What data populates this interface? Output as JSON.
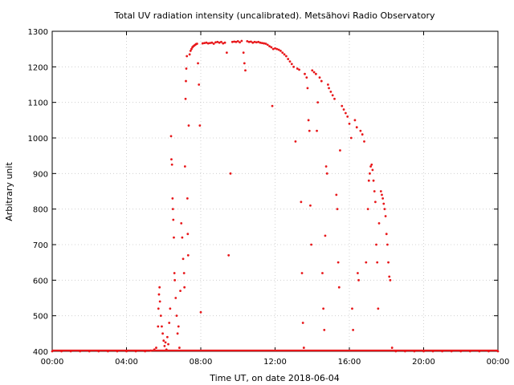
{
  "chart_data": {
    "type": "scatter",
    "title": "Total UV radiation intensity (uncalibrated). Metsähovi Radio Observatory",
    "xlabel": "Time UT, on date 2018-06-04",
    "ylabel": "Arbitrary unit",
    "x_unit": "hours UT",
    "xlim": [
      0,
      24
    ],
    "ylim": [
      400,
      1300
    ],
    "x_ticks": [
      0,
      4,
      8,
      12,
      16,
      20,
      24
    ],
    "x_tick_labels": [
      "00:00",
      "04:00",
      "08:00",
      "12:00",
      "16:00",
      "20:00",
      "00:00"
    ],
    "y_ticks": [
      400,
      500,
      600,
      700,
      800,
      900,
      1000,
      1100,
      1200,
      1300
    ],
    "y_tick_labels": [
      "400",
      "500",
      "600",
      "700",
      "800",
      "900",
      "1000",
      "1100",
      "1200",
      "1300"
    ],
    "grid": true,
    "legend": "none",
    "marker_color": "#e8171a",
    "series": [
      {
        "points": [
          [
            0.0,
            400
          ],
          [
            0.5,
            400
          ],
          [
            1.0,
            400
          ],
          [
            1.5,
            400
          ],
          [
            2.0,
            400
          ],
          [
            2.5,
            400
          ],
          [
            3.0,
            400
          ],
          [
            3.5,
            400
          ],
          [
            4.0,
            400
          ],
          [
            4.5,
            400
          ],
          [
            5.0,
            400
          ],
          [
            5.3,
            402
          ],
          [
            5.5,
            405
          ],
          [
            5.6,
            410
          ],
          [
            5.7,
            470
          ],
          [
            5.72,
            520
          ],
          [
            5.75,
            560
          ],
          [
            5.78,
            580
          ],
          [
            5.8,
            540
          ],
          [
            5.85,
            500
          ],
          [
            5.9,
            470
          ],
          [
            5.95,
            450
          ],
          [
            6.0,
            430
          ],
          [
            6.05,
            415
          ],
          [
            6.1,
            425
          ],
          [
            6.15,
            405
          ],
          [
            6.2,
            440
          ],
          [
            6.25,
            420
          ],
          [
            6.3,
            480
          ],
          [
            6.35,
            520
          ],
          [
            6.4,
            1005
          ],
          [
            6.42,
            940
          ],
          [
            6.45,
            925
          ],
          [
            6.48,
            830
          ],
          [
            6.5,
            800
          ],
          [
            6.52,
            770
          ],
          [
            6.55,
            720
          ],
          [
            6.58,
            620
          ],
          [
            6.6,
            600
          ],
          [
            6.65,
            550
          ],
          [
            6.7,
            500
          ],
          [
            6.75,
            450
          ],
          [
            6.8,
            470
          ],
          [
            6.85,
            410
          ],
          [
            6.9,
            570
          ],
          [
            6.95,
            760
          ],
          [
            7.0,
            720
          ],
          [
            7.05,
            660
          ],
          [
            7.1,
            620
          ],
          [
            7.12,
            580
          ],
          [
            7.15,
            920
          ],
          [
            7.18,
            1110
          ],
          [
            7.2,
            1160
          ],
          [
            7.22,
            1195
          ],
          [
            7.25,
            1230
          ],
          [
            7.28,
            830
          ],
          [
            7.3,
            730
          ],
          [
            7.32,
            670
          ],
          [
            7.35,
            1035
          ],
          [
            7.4,
            1235
          ],
          [
            7.45,
            1245
          ],
          [
            7.5,
            1250
          ],
          [
            7.55,
            1255
          ],
          [
            7.6,
            1258
          ],
          [
            7.65,
            1260
          ],
          [
            7.7,
            1262
          ],
          [
            7.75,
            1264
          ],
          [
            7.8,
            1265
          ],
          [
            7.85,
            1210
          ],
          [
            7.9,
            1150
          ],
          [
            7.95,
            1035
          ],
          [
            8.0,
            510
          ],
          [
            8.1,
            1266
          ],
          [
            8.2,
            1267
          ],
          [
            8.3,
            1268
          ],
          [
            8.4,
            1266
          ],
          [
            8.5,
            1267
          ],
          [
            8.6,
            1268
          ],
          [
            8.7,
            1265
          ],
          [
            8.8,
            1269
          ],
          [
            8.9,
            1270
          ],
          [
            9.0,
            1268
          ],
          [
            9.1,
            1270
          ],
          [
            9.2,
            1266
          ],
          [
            9.3,
            1268
          ],
          [
            9.4,
            1240
          ],
          [
            9.5,
            670
          ],
          [
            9.6,
            900
          ],
          [
            9.7,
            1270
          ],
          [
            9.8,
            1271
          ],
          [
            9.9,
            1270
          ],
          [
            10.0,
            1272
          ],
          [
            10.1,
            1269
          ],
          [
            10.2,
            1273
          ],
          [
            10.3,
            1240
          ],
          [
            10.35,
            1210
          ],
          [
            10.4,
            1190
          ],
          [
            10.5,
            1272
          ],
          [
            10.6,
            1270
          ],
          [
            10.7,
            1271
          ],
          [
            10.8,
            1268
          ],
          [
            10.9,
            1270
          ],
          [
            11.0,
            1269
          ],
          [
            11.1,
            1270
          ],
          [
            11.2,
            1268
          ],
          [
            11.3,
            1267
          ],
          [
            11.4,
            1266
          ],
          [
            11.5,
            1265
          ],
          [
            11.6,
            1262
          ],
          [
            11.7,
            1258
          ],
          [
            11.8,
            1255
          ],
          [
            11.85,
            1090
          ],
          [
            11.9,
            1250
          ],
          [
            12.0,
            1252
          ],
          [
            12.1,
            1250
          ],
          [
            12.2,
            1248
          ],
          [
            12.3,
            1245
          ],
          [
            12.4,
            1240
          ],
          [
            12.5,
            1235
          ],
          [
            12.6,
            1230
          ],
          [
            12.7,
            1222
          ],
          [
            12.8,
            1215
          ],
          [
            12.9,
            1208
          ],
          [
            13.0,
            1200
          ],
          [
            13.1,
            990
          ],
          [
            13.2,
            1195
          ],
          [
            13.3,
            1192
          ],
          [
            13.4,
            820
          ],
          [
            13.45,
            620
          ],
          [
            13.5,
            480
          ],
          [
            13.55,
            410
          ],
          [
            13.6,
            1180
          ],
          [
            13.7,
            1170
          ],
          [
            13.75,
            1140
          ],
          [
            13.8,
            1050
          ],
          [
            13.85,
            1020
          ],
          [
            13.9,
            810
          ],
          [
            13.95,
            700
          ],
          [
            14.0,
            1190
          ],
          [
            14.1,
            1185
          ],
          [
            14.2,
            1180
          ],
          [
            14.25,
            1020
          ],
          [
            14.3,
            1100
          ],
          [
            14.4,
            1170
          ],
          [
            14.5,
            1160
          ],
          [
            14.55,
            620
          ],
          [
            14.6,
            520
          ],
          [
            14.65,
            460
          ],
          [
            14.7,
            725
          ],
          [
            14.75,
            920
          ],
          [
            14.8,
            900
          ],
          [
            14.85,
            1150
          ],
          [
            14.9,
            1140
          ],
          [
            15.0,
            1130
          ],
          [
            15.1,
            1120
          ],
          [
            15.2,
            1110
          ],
          [
            15.3,
            840
          ],
          [
            15.35,
            800
          ],
          [
            15.4,
            650
          ],
          [
            15.45,
            580
          ],
          [
            15.5,
            965
          ],
          [
            15.6,
            1090
          ],
          [
            15.7,
            1080
          ],
          [
            15.8,
            1070
          ],
          [
            15.9,
            1060
          ],
          [
            16.0,
            1040
          ],
          [
            16.1,
            1000
          ],
          [
            16.15,
            520
          ],
          [
            16.2,
            460
          ],
          [
            16.3,
            1050
          ],
          [
            16.4,
            1030
          ],
          [
            16.45,
            620
          ],
          [
            16.5,
            600
          ],
          [
            16.6,
            1020
          ],
          [
            16.7,
            1010
          ],
          [
            16.8,
            990
          ],
          [
            16.9,
            650
          ],
          [
            17.0,
            800
          ],
          [
            17.05,
            880
          ],
          [
            17.1,
            900
          ],
          [
            17.15,
            920
          ],
          [
            17.2,
            925
          ],
          [
            17.25,
            910
          ],
          [
            17.3,
            880
          ],
          [
            17.35,
            850
          ],
          [
            17.4,
            820
          ],
          [
            17.45,
            700
          ],
          [
            17.5,
            650
          ],
          [
            17.55,
            520
          ],
          [
            17.6,
            760
          ],
          [
            17.7,
            850
          ],
          [
            17.75,
            840
          ],
          [
            17.8,
            830
          ],
          [
            17.85,
            815
          ],
          [
            17.9,
            800
          ],
          [
            17.95,
            780
          ],
          [
            18.0,
            730
          ],
          [
            18.05,
            700
          ],
          [
            18.1,
            650
          ],
          [
            18.15,
            610
          ],
          [
            18.2,
            600
          ],
          [
            18.3,
            410
          ],
          [
            18.5,
            400
          ],
          [
            19.0,
            400
          ],
          [
            19.5,
            400
          ],
          [
            20.0,
            400
          ],
          [
            20.5,
            400
          ],
          [
            21.0,
            400
          ],
          [
            21.5,
            400
          ],
          [
            22.0,
            400
          ],
          [
            22.5,
            400
          ],
          [
            23.0,
            400
          ],
          [
            23.5,
            400
          ],
          [
            24.0,
            400
          ]
        ]
      }
    ]
  }
}
